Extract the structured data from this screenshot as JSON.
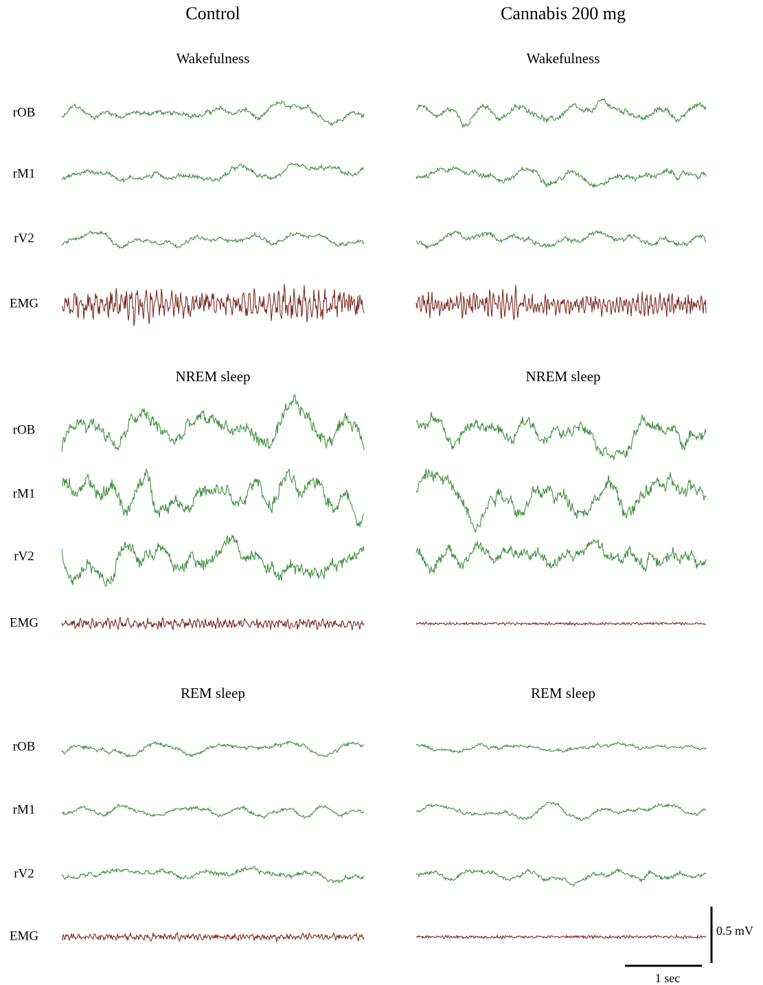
{
  "columns": [
    {
      "title": "Control",
      "states": [
        "Wakefulness",
        "NREM sleep",
        "REM sleep"
      ]
    },
    {
      "title": "Cannabis 200 mg",
      "states": [
        "Wakefulness",
        "NREM sleep",
        "REM sleep"
      ]
    }
  ],
  "sections": [
    {
      "channels": [
        "rOB",
        "rM1",
        "rV2",
        "EMG"
      ]
    },
    {
      "channels": [
        "rOB",
        "rM1",
        "rV2",
        "EMG"
      ]
    },
    {
      "channels": [
        "rOB",
        "rM1",
        "rV2",
        "EMG"
      ]
    }
  ],
  "scale_bar": {
    "amplitude": "0.5 mV",
    "time": "1 sec"
  }
}
